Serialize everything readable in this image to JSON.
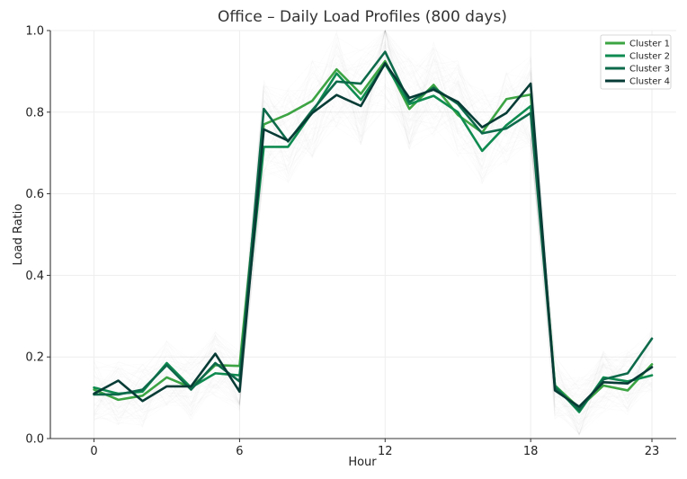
{
  "chart_data": {
    "type": "line",
    "title": "Office – Daily Load Profiles (800 days)",
    "xlabel": "Hour",
    "ylabel": "Load Ratio",
    "xlim": [
      -1.8,
      24.0
    ],
    "ylim": [
      0.0,
      1.0
    ],
    "xticks": [
      0,
      6,
      12,
      18,
      23
    ],
    "yticks": [
      0.0,
      0.2,
      0.4,
      0.6,
      0.8,
      1.0
    ],
    "grid": true,
    "legend_position": "top-right",
    "x": [
      0,
      1,
      2,
      3,
      4,
      5,
      6,
      7,
      8,
      9,
      10,
      11,
      12,
      13,
      14,
      15,
      16,
      17,
      18,
      19,
      20,
      21,
      22,
      23
    ],
    "series": [
      {
        "name": "Cluster 1",
        "color": "#3ca443",
        "values": [
          0.12,
          0.095,
          0.105,
          0.15,
          0.125,
          0.18,
          0.178,
          0.77,
          0.795,
          0.828,
          0.905,
          0.845,
          0.925,
          0.808,
          0.867,
          0.793,
          0.75,
          0.832,
          0.843,
          0.13,
          0.075,
          0.13,
          0.118,
          0.182
        ]
      },
      {
        "name": "Cluster 2",
        "color": "#0f8b50",
        "values": [
          0.125,
          0.11,
          0.115,
          0.185,
          0.125,
          0.16,
          0.155,
          0.715,
          0.715,
          0.8,
          0.895,
          0.83,
          0.918,
          0.82,
          0.84,
          0.8,
          0.705,
          0.768,
          0.815,
          0.13,
          0.065,
          0.15,
          0.14,
          0.155
        ]
      },
      {
        "name": "Cluster 3",
        "color": "#0d6a4a",
        "values": [
          0.108,
          0.108,
          0.12,
          0.18,
          0.12,
          0.185,
          0.14,
          0.808,
          0.728,
          0.805,
          0.875,
          0.87,
          0.948,
          0.825,
          0.86,
          0.82,
          0.748,
          0.76,
          0.798,
          0.125,
          0.07,
          0.145,
          0.16,
          0.245
        ]
      },
      {
        "name": "Cluster 4",
        "color": "#073b35",
        "values": [
          0.11,
          0.142,
          0.092,
          0.128,
          0.128,
          0.208,
          0.115,
          0.758,
          0.73,
          0.798,
          0.842,
          0.815,
          0.92,
          0.835,
          0.855,
          0.825,
          0.763,
          0.798,
          0.87,
          0.118,
          0.078,
          0.138,
          0.135,
          0.175
        ]
      }
    ]
  }
}
